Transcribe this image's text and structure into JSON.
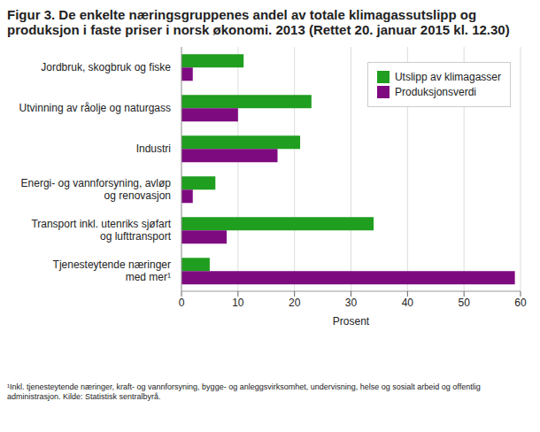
{
  "chart_data": {
    "type": "bar",
    "orientation": "horizontal",
    "title": "Figur 3. De enkelte næringsgruppenes andel av totale klimagassutslipp og produksjon i faste priser i norsk økonomi. 2013 (Rettet 20. januar 2015 kl. 12.30)",
    "footnote": "¹Inkl. tjenesteytende næringer, kraft- og vannforsyning, bygge- og anleggsvirksomhet, undervisning, helse og sosialt arbeid og offentlig administrasjon. Kilde: Statistisk sentralbyrå.",
    "x_label": "Prosent",
    "categories": [
      "Jordbruk, skogbruk og fiske",
      "Utvinning av råolje og naturgass",
      "Industri",
      "Energi- og vannforsyning, avløp\nog renovasjon",
      "Transport inkl. utenriks sjøfart\nog lufttransport",
      "Tjenesteytende næringer\nmed mer¹"
    ],
    "series": [
      {
        "name": "Utslipp av klimagasser",
        "color": "#1f9e1f",
        "values": [
          11,
          23,
          21,
          6,
          34,
          5
        ]
      },
      {
        "name": "Produksjonsverdi",
        "color": "#7e0a80",
        "values": [
          2,
          10,
          17,
          2,
          8,
          59
        ]
      }
    ],
    "xlim": [
      0,
      60
    ],
    "xticks": [
      0,
      10,
      20,
      30,
      40,
      50,
      60
    ],
    "grid": true,
    "legend": "upper right"
  }
}
